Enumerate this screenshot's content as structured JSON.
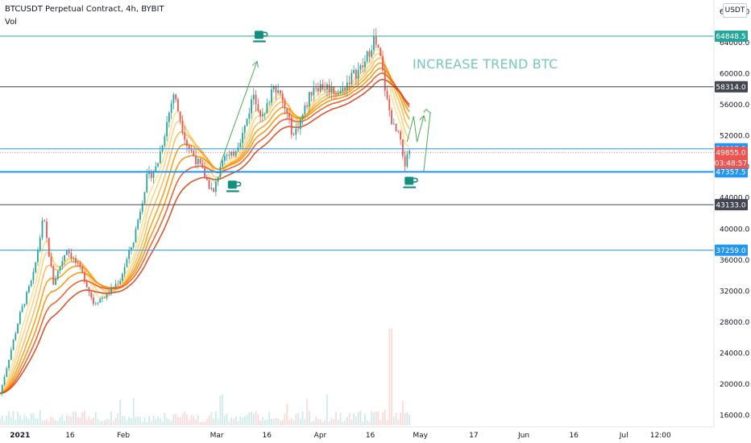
{
  "header": {
    "title": "BTCUSDT Perpetual Contract, 4h, BYBIT",
    "indicator": "Vol",
    "currency": "USDT"
  },
  "annotation": {
    "text": "INCREASE TREND BTC",
    "color": "#76c7c0"
  },
  "colors": {
    "teal_line": "#26a69a",
    "blue_line": "#2196f3",
    "black_line": "#434651",
    "up_candle": "#26a69a",
    "down_candle": "#ef5350",
    "arrow": "#4caf50",
    "cup": "#138f7e",
    "ribbon": [
      "#ffe082",
      "#ffcc80",
      "#ffb74d",
      "#ff9800",
      "#fb8c00",
      "#f4511e",
      "#d84315"
    ]
  },
  "chart_data": {
    "type": "candlestick",
    "symbol": "BTCUSDT",
    "timeframe": "4h",
    "ylim": [
      14500,
      69500
    ],
    "y_ticks": [
      "16000.0",
      "20000.0",
      "24000.0",
      "28000.0",
      "32000.0",
      "36000.0",
      "40000.0",
      "44000.0",
      "48000.0",
      "52000.0",
      "56000.0",
      "60000.0",
      "64000.0",
      "68000.0"
    ],
    "x_ticks": [
      {
        "label": "2021",
        "day": 0,
        "bold": true
      },
      {
        "label": "16",
        "day": 15
      },
      {
        "label": "Feb",
        "day": 31
      },
      {
        "label": "Mar",
        "day": 59
      },
      {
        "label": "16",
        "day": 74
      },
      {
        "label": "Apr",
        "day": 90
      },
      {
        "label": "16",
        "day": 105
      },
      {
        "label": "May",
        "day": 120
      },
      {
        "label": "17",
        "day": 136
      },
      {
        "label": "Jun",
        "day": 151
      },
      {
        "label": "16",
        "day": 166
      },
      {
        "label": "Jul",
        "day": 181
      },
      {
        "label": "12:00",
        "day": 192
      }
    ],
    "x_domain_days": [
      -6,
      208
    ],
    "price_path": [
      [
        -6,
        18800
      ],
      [
        0,
        29000
      ],
      [
        4,
        34000
      ],
      [
        7,
        41500
      ],
      [
        10,
        33000
      ],
      [
        14,
        37500
      ],
      [
        19,
        34000
      ],
      [
        22,
        30500
      ],
      [
        26,
        31500
      ],
      [
        30,
        33500
      ],
      [
        34,
        38500
      ],
      [
        38,
        46500
      ],
      [
        41,
        48000
      ],
      [
        46,
        57500
      ],
      [
        50,
        51000
      ],
      [
        54,
        48000
      ],
      [
        58,
        44500
      ],
      [
        61,
        50000
      ],
      [
        63,
        49000
      ],
      [
        67,
        52500
      ],
      [
        70,
        57500
      ],
      [
        73,
        54000
      ],
      [
        76,
        59000
      ],
      [
        79,
        56000
      ],
      [
        82,
        52000
      ],
      [
        85,
        55000
      ],
      [
        88,
        58500
      ],
      [
        92,
        58300
      ],
      [
        96,
        57500
      ],
      [
        99,
        59500
      ],
      [
        103,
        61000
      ],
      [
        106,
        64500
      ],
      [
        108,
        62000
      ],
      [
        110,
        56500
      ],
      [
        112,
        53000
      ],
      [
        114,
        51500
      ],
      [
        115,
        47800
      ],
      [
        116,
        50000
      ],
      [
        117,
        49855
      ]
    ],
    "last_day": 117,
    "volume_spike_day": 111,
    "levels": [
      {
        "price": 64848.5,
        "label": "64848.5",
        "color": "#26a69a",
        "width": 1
      },
      {
        "price": 58314.0,
        "label": "58314.0",
        "color": "#434651",
        "width": 1
      },
      {
        "price": 50327.5,
        "label": "50327.5",
        "color": "#2196f3",
        "width": 1
      },
      {
        "price": 47357.5,
        "label": "47357.5",
        "color": "#2196f3",
        "width": 2
      },
      {
        "price": 43133.0,
        "label": "43133.0",
        "color": "#434651",
        "width": 1
      },
      {
        "price": 37259.0,
        "label": "37259.0",
        "color": "#2196f3",
        "width": 1
      }
    ],
    "current_price": {
      "price": 49855.0,
      "label": "49855.0",
      "countdown": "03:48:57",
      "color": "#ef5350"
    },
    "arrows": [
      {
        "from": [
          60,
          48300
        ],
        "to": [
          71,
          61500
        ]
      },
      {
        "from": [
          116,
          51000
        ],
        "to": [
          118,
          54500
        ]
      },
      {
        "from": [
          118,
          51000
        ],
        "to": [
          120,
          54500
        ]
      },
      {
        "from": [
          121,
          47400
        ],
        "to": [
          123,
          55000
        ]
      }
    ],
    "arrows_zigzag": [
      {
        "points": [
          [
            116,
            51200
          ],
          [
            118,
            54500
          ],
          [
            119,
            51200
          ],
          [
            121,
            54500
          ]
        ]
      }
    ],
    "cups": [
      {
        "day": 64,
        "price": 45500
      },
      {
        "day": 72,
        "price": 64800
      },
      {
        "day": 117,
        "price": 46000
      }
    ]
  }
}
